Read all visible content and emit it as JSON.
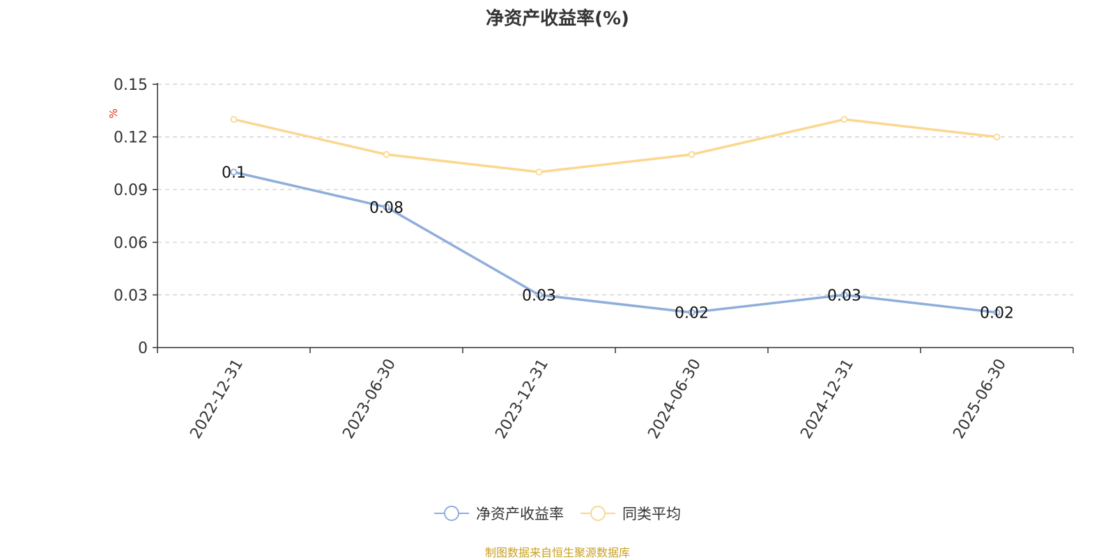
{
  "chart_data": {
    "type": "line",
    "title": "净资产收益率(%)",
    "ylabel": "%",
    "categories": [
      "2022-12-31",
      "2023-06-30",
      "2023-12-31",
      "2024-06-30",
      "2024-12-31",
      "2025-06-30"
    ],
    "series": [
      {
        "name": "净资产收益率",
        "values": [
          0.1,
          0.08,
          0.03,
          0.02,
          0.03,
          0.02
        ],
        "color": "#8eaedb",
        "data_labels": true
      },
      {
        "name": "同类平均",
        "values": [
          0.13,
          0.11,
          0.1,
          0.11,
          0.13,
          0.12
        ],
        "color": "#fbd78f",
        "data_labels": false
      }
    ],
    "ylim": [
      0,
      0.15
    ],
    "yticks": [
      "0",
      "0.03",
      "0.06",
      "0.09",
      "0.12",
      "0.15"
    ],
    "grid": "horizontal-dashed",
    "legend_position": "bottom-center"
  },
  "source_note": "制图数据来自恒生聚源数据库",
  "colors": {
    "source_note": "#c9a020",
    "ylabel": "#e0281e"
  }
}
